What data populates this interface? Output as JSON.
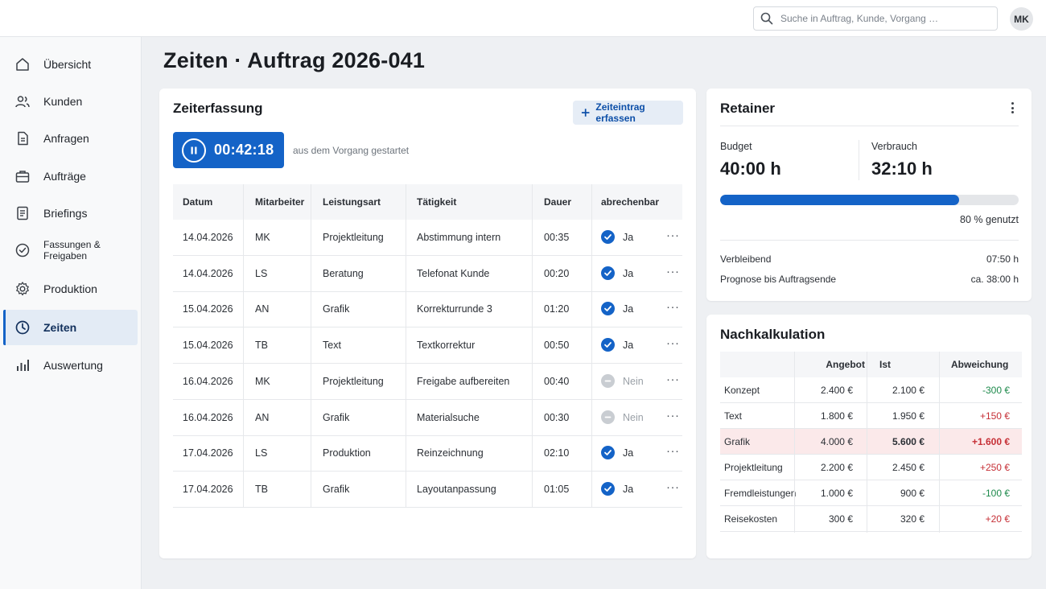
{
  "header": {
    "search_placeholder": "Suche in Auftrag, Kunde, Vorgang …",
    "avatar_initials": "MK"
  },
  "sidebar": {
    "items": [
      {
        "label": "Übersicht",
        "icon": "home-icon"
      },
      {
        "label": "Kunden",
        "icon": "users-icon"
      },
      {
        "label": "Anfragen",
        "icon": "document-icon"
      },
      {
        "label": "Aufträge",
        "icon": "briefcase-icon"
      },
      {
        "label": "Briefings",
        "icon": "notes-icon"
      },
      {
        "label": "Fassungen & Freigaben",
        "icon": "check-circle-icon"
      },
      {
        "label": "Produktion",
        "icon": "gear-icon"
      },
      {
        "label": "Zeiten",
        "icon": "clock-icon",
        "active": true
      },
      {
        "label": "Auswertung",
        "icon": "bar-chart-icon"
      }
    ]
  },
  "page": {
    "title": "Zeiten · Auftrag 2026-041"
  },
  "zeiterfassung": {
    "title": "Zeiterfassung",
    "add_label": "Zeiteintrag erfassen",
    "timer_value": "00:42:18",
    "timer_note": "aus dem Vorgang gestartet",
    "columns": [
      "Datum",
      "Mitarbeiter",
      "Leistungsart",
      "Tätigkeit",
      "Dauer",
      "abrechenbar"
    ],
    "rows": [
      {
        "datum": "14.04.2026",
        "mitarbeiter": "MK",
        "leistungsart": "Projektleitung",
        "taetigkeit": "Abstimmung intern",
        "dauer": "00:35",
        "abrechenbar": "Ja",
        "billable": true
      },
      {
        "datum": "14.04.2026",
        "mitarbeiter": "LS",
        "leistungsart": "Beratung",
        "taetigkeit": "Telefonat Kunde",
        "dauer": "00:20",
        "abrechenbar": "Ja",
        "billable": true
      },
      {
        "datum": "15.04.2026",
        "mitarbeiter": "AN",
        "leistungsart": "Grafik",
        "taetigkeit": "Korrekturrunde 3",
        "dauer": "01:20",
        "abrechenbar": "Ja",
        "billable": true
      },
      {
        "datum": "15.04.2026",
        "mitarbeiter": "TB",
        "leistungsart": "Text",
        "taetigkeit": "Textkorrektur",
        "dauer": "00:50",
        "abrechenbar": "Ja",
        "billable": true
      },
      {
        "datum": "16.04.2026",
        "mitarbeiter": "MK",
        "leistungsart": "Projektleitung",
        "taetigkeit": "Freigabe aufbereiten",
        "dauer": "00:40",
        "abrechenbar": "Nein",
        "billable": false
      },
      {
        "datum": "16.04.2026",
        "mitarbeiter": "AN",
        "leistungsart": "Grafik",
        "taetigkeit": "Materialsuche",
        "dauer": "00:30",
        "abrechenbar": "Nein",
        "billable": false
      },
      {
        "datum": "17.04.2026",
        "mitarbeiter": "LS",
        "leistungsart": "Produktion",
        "taetigkeit": "Reinzeichnung",
        "dauer": "02:10",
        "abrechenbar": "Ja",
        "billable": true
      },
      {
        "datum": "17.04.2026",
        "mitarbeiter": "TB",
        "leistungsart": "Grafik",
        "taetigkeit": "Layoutanpassung",
        "dauer": "01:05",
        "abrechenbar": "Ja",
        "billable": true
      }
    ]
  },
  "retainer": {
    "title": "Retainer",
    "budget_label": "Budget",
    "budget_value": "40:00 h",
    "verbrauch_label": "Verbrauch",
    "verbrauch_value": "32:10 h",
    "progress_fraction": 0.8,
    "progress_label": "80 % genutzt",
    "verbleibend_label": "Verbleibend",
    "verbleibend_value": "07:50 h",
    "prognose_label": "Prognose bis Auftragsende",
    "prognose_value": "ca. 38:00 h"
  },
  "nachkalkulation": {
    "title": "Nachkalkulation",
    "columns": [
      "",
      "Angebot",
      "Ist",
      "Abweichung"
    ],
    "rows": [
      {
        "name": "Konzept",
        "angebot": "2.400 €",
        "ist": "2.100 €",
        "abweichung": "-300 €",
        "trend": "neg"
      },
      {
        "name": "Text",
        "angebot": "1.800 €",
        "ist": "1.950 €",
        "abweichung": "+150 €",
        "trend": "pos"
      },
      {
        "name": "Grafik",
        "angebot": "4.000 €",
        "ist": "5.600 €",
        "abweichung": "+1.600 €",
        "trend": "pos",
        "highlight": true
      },
      {
        "name": "Projektleitung",
        "angebot": "2.200 €",
        "ist": "2.450 €",
        "abweichung": "+250 €",
        "trend": "pos"
      },
      {
        "name": "Fremdleistungen",
        "angebot": "1.000 €",
        "ist": "900 €",
        "abweichung": "-100 €",
        "trend": "neg"
      },
      {
        "name": "Reisekosten",
        "angebot": "300 €",
        "ist": "320 €",
        "abweichung": "+20 €",
        "trend": "pos"
      }
    ]
  },
  "colors": {
    "accent": "#1463c7",
    "negative_variance": "#1e8a4c",
    "positive_variance": "#c62f36",
    "highlight_row": "#fbe9ea"
  }
}
